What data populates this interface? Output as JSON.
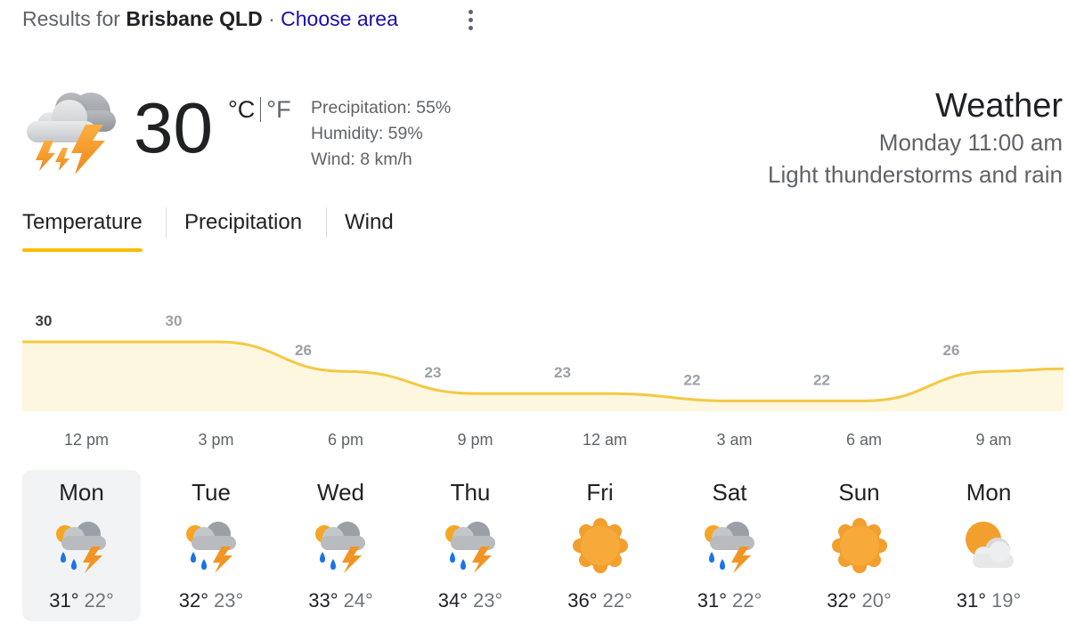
{
  "header": {
    "prefix": "Results for",
    "location": "Brisbane QLD",
    "separator": "·",
    "choose_area": "Choose area"
  },
  "current": {
    "icon": "thunderstorm-icon",
    "temperature": "30",
    "unit_c": "°C",
    "unit_f": "°F",
    "precipitation": "Precipitation: 55%",
    "humidity": "Humidity: 59%",
    "wind": "Wind: 8 km/h"
  },
  "title": {
    "heading": "Weather",
    "datetime": "Monday 11:00 am",
    "condition": "Light thunderstorms and rain"
  },
  "tabs": [
    {
      "label": "Temperature",
      "active": true
    },
    {
      "label": "Precipitation",
      "active": false
    },
    {
      "label": "Wind",
      "active": false
    }
  ],
  "colors": {
    "accent": "#fbbc04",
    "chart_line": "#f5c842",
    "chart_fill": "#fef7e0",
    "link": "#1a0dab"
  },
  "chart_data": {
    "type": "area",
    "x": [
      "12 pm",
      "3 pm",
      "6 pm",
      "9 pm",
      "12 am",
      "3 am",
      "6 am",
      "9 am"
    ],
    "values": [
      30,
      30,
      26,
      23,
      23,
      22,
      22,
      26
    ],
    "labels": [
      "30",
      "30",
      "26",
      "23",
      "23",
      "22",
      "22",
      "26"
    ]
  },
  "forecast": [
    {
      "day": "Mon",
      "icon": "thunderstorm-rain-icon",
      "high": "31°",
      "low": "22°",
      "selected": true
    },
    {
      "day": "Tue",
      "icon": "thunderstorm-rain-icon",
      "high": "32°",
      "low": "23°",
      "selected": false
    },
    {
      "day": "Wed",
      "icon": "thunderstorm-rain-icon",
      "high": "33°",
      "low": "24°",
      "selected": false
    },
    {
      "day": "Thu",
      "icon": "thunderstorm-rain-icon",
      "high": "34°",
      "low": "23°",
      "selected": false
    },
    {
      "day": "Fri",
      "icon": "sunny-icon",
      "high": "36°",
      "low": "22°",
      "selected": false
    },
    {
      "day": "Sat",
      "icon": "thunderstorm-rain-icon",
      "high": "31°",
      "low": "22°",
      "selected": false
    },
    {
      "day": "Sun",
      "icon": "sunny-icon",
      "high": "32°",
      "low": "20°",
      "selected": false
    },
    {
      "day": "Mon",
      "icon": "partly-cloudy-icon",
      "high": "31°",
      "low": "19°",
      "selected": false
    }
  ]
}
